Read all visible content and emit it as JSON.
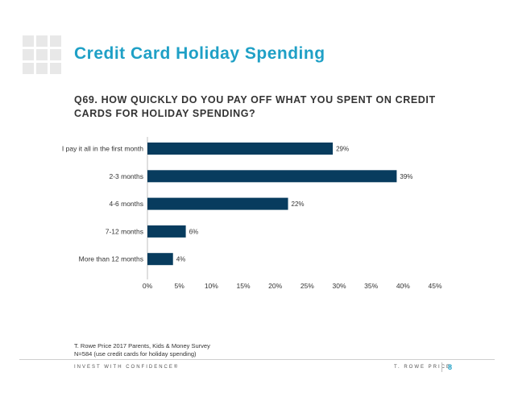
{
  "slide": {
    "title": "Credit Card Holiday Spending",
    "question": "Q69. HOW QUICKLY DO YOU PAY OFF WHAT YOU SPENT ON CREDIT CARDS FOR HOLIDAY SPENDING?",
    "footnote_source": "T. Rowe Price 2017 Parents, Kids & Money Survey",
    "footnote_base": "N=584 (use credit cards for holiday spending)",
    "tagline": "INVEST WITH CONFIDENCE®",
    "brand": "T. ROWE PRICE",
    "page_number": "8"
  },
  "colors": {
    "bar": "#083c5e",
    "title": "#1fa0c6"
  },
  "chart_data": {
    "type": "bar",
    "orientation": "horizontal",
    "categories": [
      "I pay it all in the first month",
      "2-3 months",
      "4-6 months",
      "7-12 months",
      "More than 12 months"
    ],
    "values": [
      29,
      39,
      22,
      6,
      4
    ],
    "data_labels": [
      "29%",
      "39%",
      "22%",
      "6%",
      "4%"
    ],
    "xlim": [
      0,
      45
    ],
    "xticks": [
      0,
      5,
      10,
      15,
      20,
      25,
      30,
      35,
      40,
      45
    ],
    "xtick_labels": [
      "0%",
      "5%",
      "10%",
      "15%",
      "20%",
      "25%",
      "30%",
      "35%",
      "40%",
      "45%"
    ],
    "grid": false,
    "legend": "none"
  }
}
